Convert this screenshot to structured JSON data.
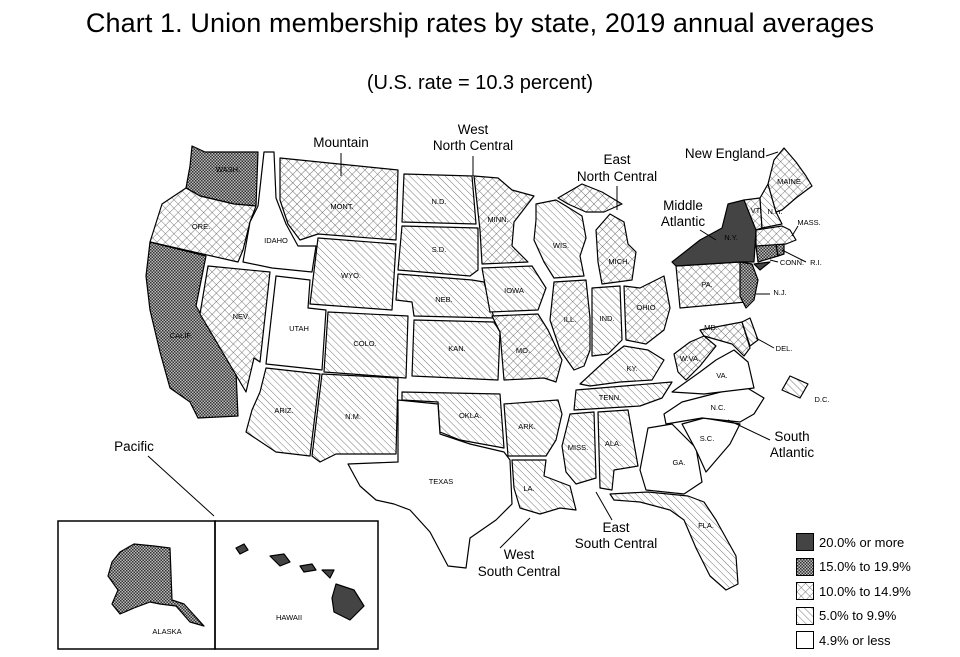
{
  "title": "Chart 1. Union membership rates by state, 2019 annual averages",
  "subtitle": "(U.S. rate = 10.3 percent)",
  "legend": [
    {
      "label": "20.0% or more",
      "pattern": "solid"
    },
    {
      "label": "15.0% to 19.9%",
      "pattern": "dots"
    },
    {
      "label": "10.0% to 14.9%",
      "pattern": "cross"
    },
    {
      "label": "5.0% to 9.9%",
      "pattern": "diag"
    },
    {
      "label": "4.9% or less",
      "pattern": "blank"
    }
  ],
  "regions": {
    "pacific": "Pacific",
    "mountain": "Mountain",
    "west_north_central": [
      "West",
      "North Central"
    ],
    "east_north_central": [
      "East",
      "North Central"
    ],
    "new_england": "New England",
    "middle_atlantic": [
      "Middle",
      "Atlantic"
    ],
    "south_atlantic": [
      "South",
      "Atlantic"
    ],
    "east_south_central": [
      "East",
      "South Central"
    ],
    "west_south_central": [
      "West",
      "South Central"
    ]
  },
  "states": {
    "wa": "WASH.",
    "or": "ORE.",
    "ca": "CALIF.",
    "nv": "NEV.",
    "id": "IDAHO",
    "mt": "MONT.",
    "wy": "WYO.",
    "ut": "UTAH",
    "co": "COLO.",
    "az": "ARIZ.",
    "nm": "N.M.",
    "nd": "N.D.",
    "sd": "S.D.",
    "ne": "NEB.",
    "ks": "KAN.",
    "mn": "MINN.",
    "ia": "IOWA",
    "mo": "MO.",
    "ok": "OKLA.",
    "tx": "TEXAS",
    "ar": "ARK.",
    "la": "LA.",
    "wi": "WIS.",
    "il": "ILL.",
    "mi": "MICH.",
    "in": "IND.",
    "oh": "OHIO",
    "ky": "KY.",
    "tn": "TENN.",
    "ms": "MISS.",
    "al": "ALA.",
    "ga": "GA.",
    "fl": "FLA.",
    "sc": "S.C.",
    "nc": "N.C.",
    "va": "VA.",
    "wv": "W.VA.",
    "md": "MD.",
    "de": "DEL.",
    "dc": "D.C.",
    "pa": "PA.",
    "nj": "N.J.",
    "ny": "N.Y.",
    "ct": "CONN.",
    "ri": "R.I.",
    "ma": "MASS.",
    "vt": "VT.",
    "nh": "N.H.",
    "me": "MAINE",
    "ak": "ALASKA",
    "hi": "HAWAII"
  },
  "state_bands": {
    "wa": "dots",
    "or": "cross",
    "ca": "dots",
    "nv": "cross",
    "id": "blank",
    "mt": "cross",
    "wy": "diag",
    "ut": "blank",
    "co": "diag",
    "az": "diag",
    "nm": "diag",
    "nd": "diag",
    "sd": "diag",
    "ne": "diag",
    "ks": "diag",
    "mn": "cross",
    "ia": "diag",
    "mo": "cross",
    "ok": "diag",
    "tx": "blank",
    "ar": "diag",
    "la": "diag",
    "wi": "diag",
    "il": "cross",
    "mi": "cross",
    "in": "diag",
    "oh": "cross",
    "ky": "diag",
    "tn": "diag",
    "ms": "diag",
    "al": "diag",
    "ga": "blank",
    "fl": "diag",
    "sc": "blank",
    "nc": "blank",
    "va": "blank",
    "wv": "cross",
    "md": "cross",
    "de": "diag",
    "dc": "diag",
    "pa": "cross",
    "nj": "dots",
    "ny": "solid",
    "ct": "dots",
    "ri": "dots",
    "ma": "cross",
    "vt": "cross",
    "nh": "diag",
    "me": "cross",
    "ak": "dots",
    "hi": "solid"
  }
}
